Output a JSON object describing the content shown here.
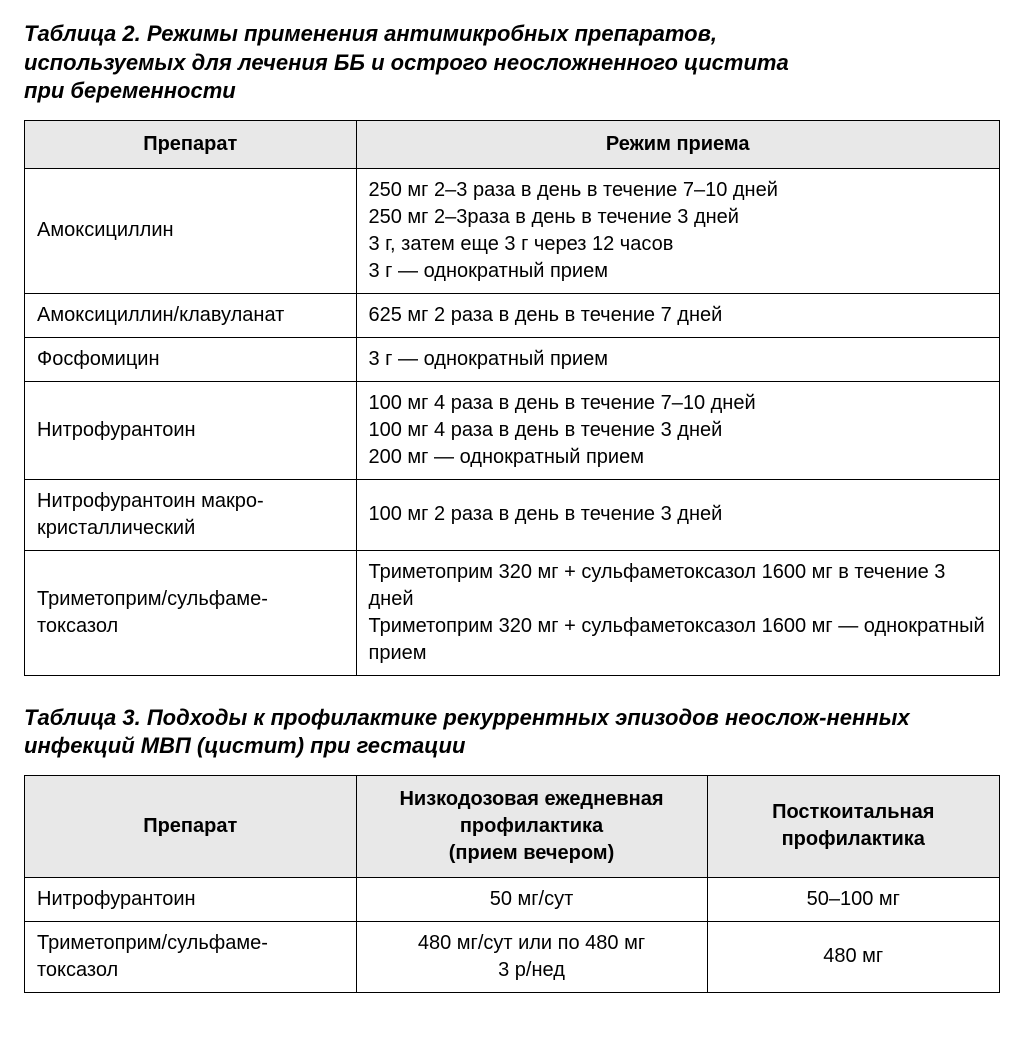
{
  "table2": {
    "title": "Таблица 2. Режимы применения антимикробных препаратов,\nиспользуемых для лечения ББ и острого неосложненного цистита\nпри беременности",
    "columns": [
      "Препарат",
      "Режим приема"
    ],
    "col_widths_pct": [
      34,
      66
    ],
    "header_bg": "#e8e8e8",
    "border_color": "#000000",
    "font_size_pt": 15,
    "rows": [
      {
        "drug": "Амоксициллин",
        "regimens": [
          "250 мг 2–3 раза в день в течение 7–10 дней",
          "250 мг 2–3раза в день в течение 3 дней",
          "3 г, затем еще 3 г через 12 часов",
          "3 г — однократный прием"
        ]
      },
      {
        "drug": "Амоксициллин/клавуланат",
        "regimens": [
          "625 мг 2 раза в день в течение 7 дней"
        ]
      },
      {
        "drug": "Фосфомицин",
        "regimens": [
          "3 г — однократный прием"
        ]
      },
      {
        "drug": "Нитрофурантоин",
        "regimens": [
          "100 мг 4 раза в день в течение 7–10 дней",
          "100 мг 4 раза в день в течение 3 дней",
          "200 мг — однократный прием"
        ]
      },
      {
        "drug": "Нитрофурантоин макро-кристаллический",
        "regimens": [
          "100 мг 2 раза в день в течение 3 дней"
        ]
      },
      {
        "drug": "Триметоприм/сульфаме-токсазол",
        "regimens": [
          "Триметоприм 320 мг + сульфаметоксазол 1600 мг в течение 3 дней",
          "Триметоприм 320 мг + сульфаметоксазол 1600 мг — однократный прием"
        ]
      }
    ]
  },
  "table3": {
    "title": "Таблица 3. Подходы к профилактике рекуррентных эпизодов неослож-ненных инфекций МВП (цистит) при гестации",
    "columns": [
      "Препарат",
      "Низкодозовая ежедневная профилактика\n(прием вечером)",
      "Посткоитальная профилактика"
    ],
    "col_widths_pct": [
      34,
      36,
      30
    ],
    "header_bg": "#e8e8e8",
    "border_color": "#000000",
    "font_size_pt": 15,
    "rows": [
      {
        "drug": "Нитрофурантоин",
        "daily": "50 мг/сут",
        "postcoital": "50–100 мг"
      },
      {
        "drug": "Триметоприм/сульфаме-токсазол",
        "daily": "480 мг/сут или по 480 мг\n3 р/нед",
        "postcoital": "480 мг"
      }
    ]
  }
}
